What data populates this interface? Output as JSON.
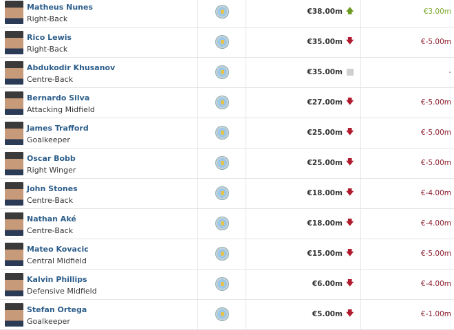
{
  "players": [
    {
      "name": "Matheus Nunes",
      "position": "Right-Back",
      "market_value": "€38.00m",
      "trend": "up",
      "change": "€3.00m"
    },
    {
      "name": "Rico Lewis",
      "position": "Right-Back",
      "market_value": "€35.00m",
      "trend": "down",
      "change": "€-5.00m"
    },
    {
      "name": "Abdukodir Khusanov",
      "position": "Centre-Back",
      "market_value": "€35.00m",
      "trend": "same",
      "change": "-"
    },
    {
      "name": "Bernardo Silva",
      "position": "Attacking Midfield",
      "market_value": "€27.00m",
      "trend": "down",
      "change": "€-5.00m"
    },
    {
      "name": "James Trafford",
      "position": "Goalkeeper",
      "market_value": "€25.00m",
      "trend": "down",
      "change": "€-5.00m"
    },
    {
      "name": "Oscar Bobb",
      "position": "Right Winger",
      "market_value": "€25.00m",
      "trend": "down",
      "change": "€-5.00m"
    },
    {
      "name": "John Stones",
      "position": "Centre-Back",
      "market_value": "€18.00m",
      "trend": "down",
      "change": "€-4.00m"
    },
    {
      "name": "Nathan Aké",
      "position": "Centre-Back",
      "market_value": "€18.00m",
      "trend": "down",
      "change": "€-4.00m"
    },
    {
      "name": "Mateo Kovacic",
      "position": "Central Midfield",
      "market_value": "€15.00m",
      "trend": "down",
      "change": "€-5.00m"
    },
    {
      "name": "Kalvin Phillips",
      "position": "Defensive Midfield",
      "market_value": "€6.00m",
      "trend": "down",
      "change": "€-4.00m"
    },
    {
      "name": "Stefan Ortega",
      "position": "Goalkeeper",
      "market_value": "€5.00m",
      "trend": "down",
      "change": "€-1.00m"
    }
  ],
  "colors": {
    "up": "#6a9a1f",
    "down": "#b01c2e",
    "name_link": "#2c5d8a"
  },
  "icons": {
    "club": "manchester-city-crest-icon",
    "up": "arrow-up-icon",
    "down": "arrow-down-icon",
    "same": "grey-square-icon"
  }
}
